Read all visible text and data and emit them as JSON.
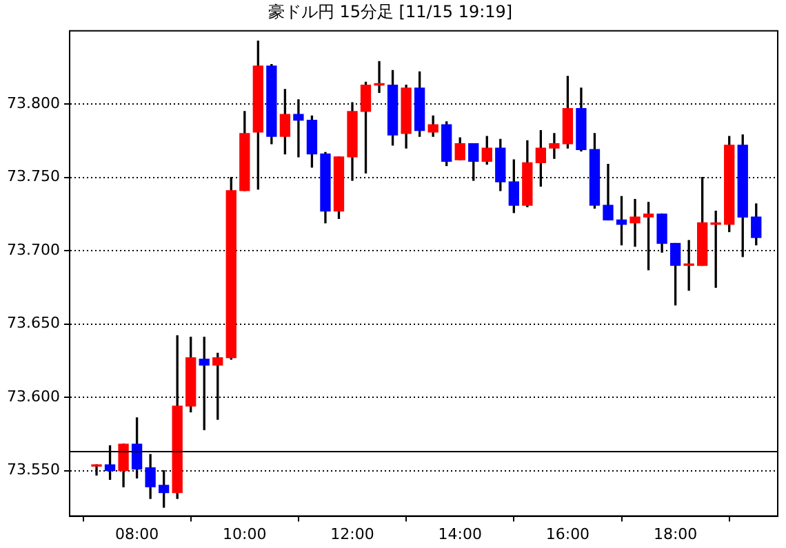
{
  "chart_data": {
    "type": "candlestick",
    "title": "豪ドル円 15分足 [11/15 19:19]",
    "x": [
      7.25,
      7.5,
      7.75,
      8,
      8.25,
      8.5,
      8.75,
      9,
      9.25,
      9.5,
      9.75,
      10,
      10.25,
      10.5,
      10.75,
      11,
      11.25,
      11.5,
      11.75,
      12,
      12.25,
      12.5,
      12.75,
      13,
      13.25,
      13.5,
      13.75,
      14,
      14.25,
      14.5,
      14.75,
      15,
      15.25,
      15.5,
      15.75,
      16,
      16.25,
      16.5,
      16.75,
      17,
      17.25,
      17.5,
      17.75,
      18,
      18.25,
      18.5,
      18.75,
      19,
      19.25,
      19.5
    ],
    "ohlc": [
      [
        73.553,
        73.554,
        73.547,
        73.554
      ],
      [
        73.554,
        73.567,
        73.544,
        73.55
      ],
      [
        73.55,
        73.568,
        73.539,
        73.568
      ],
      [
        73.568,
        73.586,
        73.545,
        73.551
      ],
      [
        73.552,
        73.561,
        73.531,
        73.539
      ],
      [
        73.54,
        73.55,
        73.525,
        73.535
      ],
      [
        73.535,
        73.642,
        73.531,
        73.594
      ],
      [
        73.594,
        73.641,
        73.59,
        73.627
      ],
      [
        73.626,
        73.641,
        73.578,
        73.622
      ],
      [
        73.622,
        73.63,
        73.585,
        73.627
      ],
      [
        73.627,
        73.75,
        73.626,
        73.741
      ],
      [
        73.741,
        73.795,
        73.741,
        73.78
      ],
      [
        73.781,
        73.843,
        73.742,
        73.826
      ],
      [
        73.826,
        73.827,
        73.773,
        73.778
      ],
      [
        73.778,
        73.81,
        73.766,
        73.793
      ],
      [
        73.793,
        73.803,
        73.764,
        73.789
      ],
      [
        73.789,
        73.792,
        73.757,
        73.766
      ],
      [
        73.766,
        73.767,
        73.719,
        73.727
      ],
      [
        73.727,
        73.764,
        73.722,
        73.764
      ],
      [
        73.764,
        73.801,
        73.748,
        73.795
      ],
      [
        73.795,
        73.815,
        73.753,
        73.813
      ],
      [
        73.813,
        73.829,
        73.808,
        73.814
      ],
      [
        73.813,
        73.823,
        73.772,
        73.779
      ],
      [
        73.78,
        73.813,
        73.77,
        73.811
      ],
      [
        73.811,
        73.822,
        73.778,
        73.782
      ],
      [
        73.781,
        73.792,
        73.778,
        73.786
      ],
      [
        73.786,
        73.788,
        73.758,
        73.761
      ],
      [
        73.762,
        73.777,
        73.762,
        73.773
      ],
      [
        73.773,
        73.773,
        73.748,
        73.761
      ],
      [
        73.761,
        73.778,
        73.759,
        73.77
      ],
      [
        73.77,
        73.776,
        73.741,
        73.747
      ],
      [
        73.747,
        73.762,
        73.726,
        73.731
      ],
      [
        73.731,
        73.775,
        73.73,
        73.76
      ],
      [
        73.76,
        73.782,
        73.744,
        73.77
      ],
      [
        73.77,
        73.78,
        73.763,
        73.773
      ],
      [
        73.773,
        73.819,
        73.77,
        73.797
      ],
      [
        73.797,
        73.811,
        73.768,
        73.769
      ],
      [
        73.769,
        73.78,
        73.729,
        73.731
      ],
      [
        73.731,
        73.759,
        73.721,
        73.721
      ],
      [
        73.721,
        73.737,
        73.704,
        73.718
      ],
      [
        73.719,
        73.735,
        73.703,
        73.723
      ],
      [
        73.723,
        73.733,
        73.687,
        73.725
      ],
      [
        73.725,
        73.725,
        73.699,
        73.705
      ],
      [
        73.705,
        73.705,
        73.663,
        73.69
      ],
      [
        73.69,
        73.707,
        73.673,
        73.691
      ],
      [
        73.69,
        73.75,
        73.69,
        73.719
      ],
      [
        73.718,
        73.727,
        73.675,
        73.719
      ],
      [
        73.718,
        73.778,
        73.713,
        73.772
      ],
      [
        73.772,
        73.779,
        73.696,
        73.723
      ],
      [
        73.723,
        73.732,
        73.704,
        73.709
      ]
    ],
    "colors": [
      "#ff0000",
      "#0000ff",
      "#ff0000",
      "#0000ff",
      "#0000ff",
      "#0000ff",
      "#ff0000",
      "#ff0000",
      "#0000ff",
      "#ff0000",
      "#ff0000",
      "#ff0000",
      "#ff0000",
      "#0000ff",
      "#ff0000",
      "#0000ff",
      "#0000ff",
      "#0000ff",
      "#ff0000",
      "#ff0000",
      "#ff0000",
      "#ff0000",
      "#0000ff",
      "#ff0000",
      "#0000ff",
      "#ff0000",
      "#0000ff",
      "#ff0000",
      "#0000ff",
      "#ff0000",
      "#0000ff",
      "#0000ff",
      "#ff0000",
      "#ff0000",
      "#ff0000",
      "#ff0000",
      "#0000ff",
      "#0000ff",
      "#0000ff",
      "#0000ff",
      "#ff0000",
      "#ff0000",
      "#0000ff",
      "#0000ff",
      "#ff0000",
      "#ff0000",
      "#ff0000",
      "#ff0000",
      "#0000ff",
      "#0000ff"
    ],
    "xlim": [
      6.75,
      19.9
    ],
    "xticks": [
      {
        "value": 8,
        "label": "08:00"
      },
      {
        "value": 10,
        "label": "10:00"
      },
      {
        "value": 12,
        "label": "12:00"
      },
      {
        "value": 14,
        "label": "14:00"
      },
      {
        "value": 16,
        "label": "16:00"
      },
      {
        "value": 18,
        "label": "18:00"
      }
    ],
    "ylim": [
      73.519,
      73.85
    ],
    "yticks": [
      {
        "value": 73.55,
        "label": "73.550"
      },
      {
        "value": 73.6,
        "label": "73.600"
      },
      {
        "value": 73.65,
        "label": "73.650"
      },
      {
        "value": 73.7,
        "label": "73.700"
      },
      {
        "value": 73.75,
        "label": "73.750"
      },
      {
        "value": 73.8,
        "label": "73.800"
      }
    ],
    "ref_lines": [
      {
        "axis": "y",
        "value": 73.563,
        "color": "#000000"
      }
    ],
    "grid": "y",
    "legend": false
  }
}
